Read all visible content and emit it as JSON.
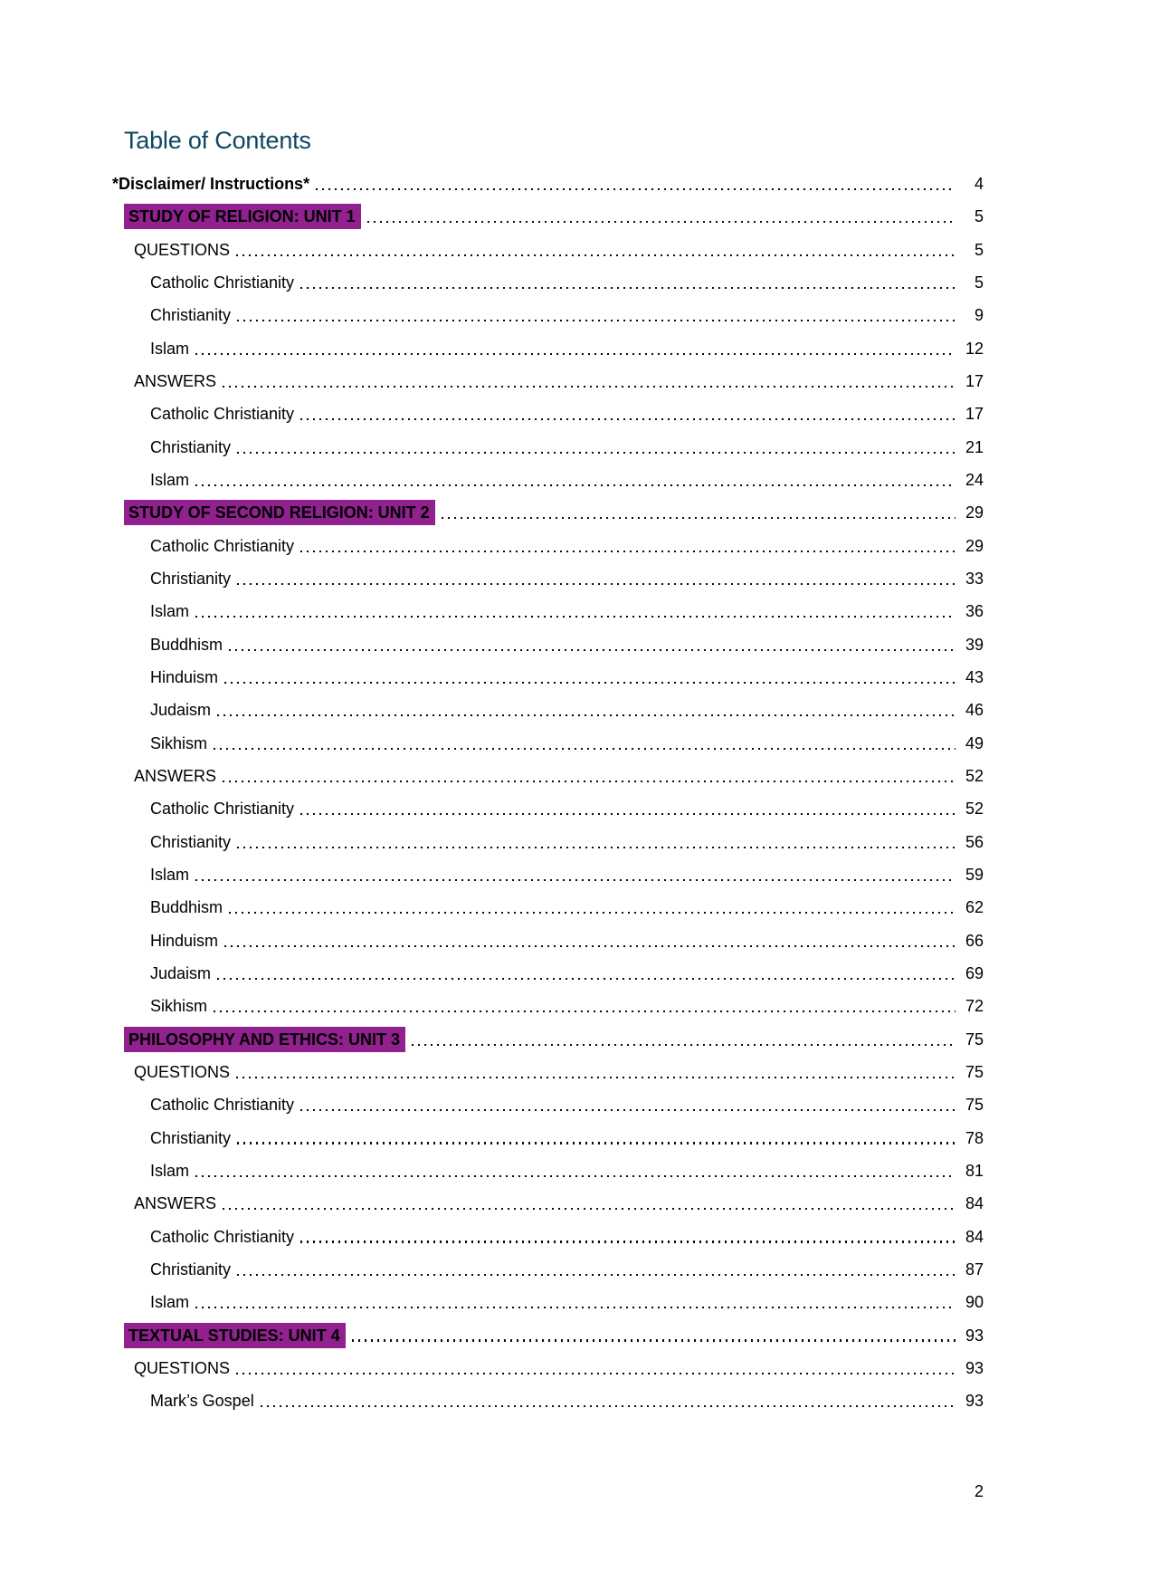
{
  "page": {
    "title": "Table of Contents",
    "footer_page_number": "2",
    "colors": {
      "title_text": "#0F4761",
      "highlight": "#90218E",
      "body_text": "#000000",
      "background": "#FFFFFF"
    }
  },
  "toc": {
    "entries": [
      {
        "label": "*Disclaimer/ Instructions*",
        "page": "4",
        "level": 1,
        "style": "bold"
      },
      {
        "label": "STUDY OF RELIGION: UNIT 1",
        "page": "5",
        "level": 1,
        "style": "highlight"
      },
      {
        "label": "QUESTIONS",
        "page": "5",
        "level": 2,
        "style": "normal"
      },
      {
        "label": "Catholic Christianity",
        "page": "5",
        "level": 3,
        "style": "normal"
      },
      {
        "label": "Christianity",
        "page": "9",
        "level": 3,
        "style": "normal"
      },
      {
        "label": "Islam",
        "page": "12",
        "level": 3,
        "style": "normal"
      },
      {
        "label": "ANSWERS",
        "page": "17",
        "level": 2,
        "style": "normal"
      },
      {
        "label": "Catholic Christianity",
        "page": "17",
        "level": 3,
        "style": "normal"
      },
      {
        "label": "Christianity",
        "page": "21",
        "level": 3,
        "style": "normal"
      },
      {
        "label": "Islam",
        "page": "24",
        "level": 3,
        "style": "normal"
      },
      {
        "label": "STUDY OF SECOND RELIGION: UNIT 2",
        "page": "29",
        "level": 1,
        "style": "highlight"
      },
      {
        "label": "Catholic Christianity",
        "page": "29",
        "level": 3,
        "style": "normal"
      },
      {
        "label": "Christianity",
        "page": "33",
        "level": 3,
        "style": "normal"
      },
      {
        "label": "Islam",
        "page": "36",
        "level": 3,
        "style": "normal"
      },
      {
        "label": "Buddhism",
        "page": "39",
        "level": 3,
        "style": "normal"
      },
      {
        "label": "Hinduism",
        "page": "43",
        "level": 3,
        "style": "normal"
      },
      {
        "label": "Judaism",
        "page": "46",
        "level": 3,
        "style": "normal"
      },
      {
        "label": "Sikhism",
        "page": "49",
        "level": 3,
        "style": "normal"
      },
      {
        "label": "ANSWERS",
        "page": "52",
        "level": 2,
        "style": "normal"
      },
      {
        "label": "Catholic Christianity",
        "page": "52",
        "level": 3,
        "style": "normal"
      },
      {
        "label": "Christianity",
        "page": "56",
        "level": 3,
        "style": "normal"
      },
      {
        "label": "Islam",
        "page": "59",
        "level": 3,
        "style": "normal"
      },
      {
        "label": "Buddhism",
        "page": "62",
        "level": 3,
        "style": "normal"
      },
      {
        "label": "Hinduism",
        "page": "66",
        "level": 3,
        "style": "normal"
      },
      {
        "label": "Judaism",
        "page": "69",
        "level": 3,
        "style": "normal"
      },
      {
        "label": "Sikhism",
        "page": "72",
        "level": 3,
        "style": "normal"
      },
      {
        "label": "PHILOSOPHY AND ETHICS: UNIT 3",
        "page": "75",
        "level": 1,
        "style": "highlight"
      },
      {
        "label": "QUESTIONS",
        "page": "75",
        "level": 2,
        "style": "normal"
      },
      {
        "label": "Catholic Christianity",
        "page": "75",
        "level": 3,
        "style": "normal"
      },
      {
        "label": "Christianity",
        "page": "78",
        "level": 3,
        "style": "normal"
      },
      {
        "label": "Islam",
        "page": "81",
        "level": 3,
        "style": "normal"
      },
      {
        "label": "ANSWERS",
        "page": "84",
        "level": 2,
        "style": "normal"
      },
      {
        "label": "Catholic Christianity",
        "page": "84",
        "level": 3,
        "style": "normal"
      },
      {
        "label": "Christianity",
        "page": "87",
        "level": 3,
        "style": "normal"
      },
      {
        "label": "Islam",
        "page": "90",
        "level": 3,
        "style": "normal"
      },
      {
        "label": "TEXTUAL STUDIES: UNIT 4",
        "page": "93",
        "level": 1,
        "style": "highlight"
      },
      {
        "label": "QUESTIONS",
        "page": "93",
        "level": 2,
        "style": "normal"
      },
      {
        "label": "Mark’s Gospel",
        "page": "93",
        "level": 3,
        "style": "normal"
      }
    ]
  }
}
